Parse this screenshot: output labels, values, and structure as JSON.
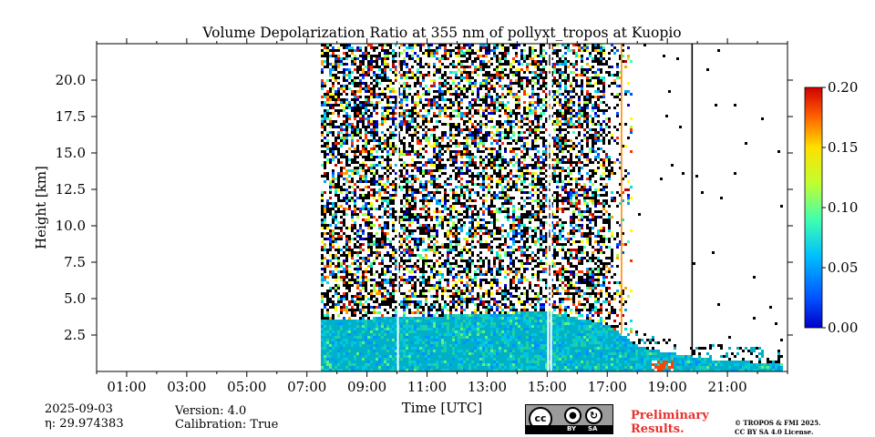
{
  "chart_data": {
    "type": "heatmap",
    "title": "Volume Depolarization Ratio at 355 nm of pollyxt_tropos at Kuopio",
    "xlabel": "Time [UTC]",
    "ylabel": "Height [km]",
    "x_ticks": [
      "01:00",
      "03:00",
      "05:00",
      "07:00",
      "09:00",
      "11:00",
      "13:00",
      "15:00",
      "17:00",
      "19:00",
      "21:00"
    ],
    "x_tick_hours": [
      1,
      3,
      5,
      7,
      9,
      11,
      13,
      15,
      17,
      19,
      21
    ],
    "xlim_hours": [
      0,
      23
    ],
    "y_ticks": [
      "2.5",
      "5.0",
      "7.5",
      "10.0",
      "12.5",
      "15.0",
      "17.5",
      "20.0"
    ],
    "y_tick_values": [
      2.5,
      5.0,
      7.5,
      10.0,
      12.5,
      15.0,
      17.5,
      20.0
    ],
    "ylim_km": [
      0,
      22.5
    ],
    "colorbar": {
      "ticks": [
        "0.00",
        "0.05",
        "0.10",
        "0.15",
        "0.20"
      ],
      "tick_values": [
        0.0,
        0.05,
        0.1,
        0.15,
        0.2
      ],
      "range": [
        0.0,
        0.2
      ],
      "colormap": "jet"
    },
    "data_start_hour": 7.45,
    "dense_noise_end_hour": 16.9,
    "sparse_noise_end_hour": 17.8,
    "gap_lines_hours": [
      10.0,
      15.0,
      15.1
    ],
    "profile_lines": [
      {
        "hour": 17.45,
        "color": "#ff8c00"
      },
      {
        "hour": 19.8,
        "color": "#000000"
      }
    ],
    "aerosol_layer": [
      {
        "hour": 7.45,
        "top_km": 3.6
      },
      {
        "hour": 11.0,
        "top_km": 3.9
      },
      {
        "hour": 15.0,
        "top_km": 4.2
      },
      {
        "hour": 17.0,
        "top_km": 3.3
      },
      {
        "hour": 18.0,
        "top_km": 1.8
      },
      {
        "hour": 20.0,
        "top_km": 1.0
      },
      {
        "hour": 22.8,
        "top_km": 0.6
      }
    ]
  },
  "info": {
    "date": "2025-09-03",
    "eta": "η: 29.974383",
    "version": "Version: 4.0",
    "calibration": "Calibration: True",
    "preliminary_line1": "Preliminary",
    "preliminary_line2": "Results.",
    "license_line1": "© TROPOS & FMI 2025.",
    "license_line2": "CC BY SA 4.0 License.",
    "cc_badge": {
      "cc": "cc",
      "by": "BY",
      "sa": "SA"
    }
  }
}
